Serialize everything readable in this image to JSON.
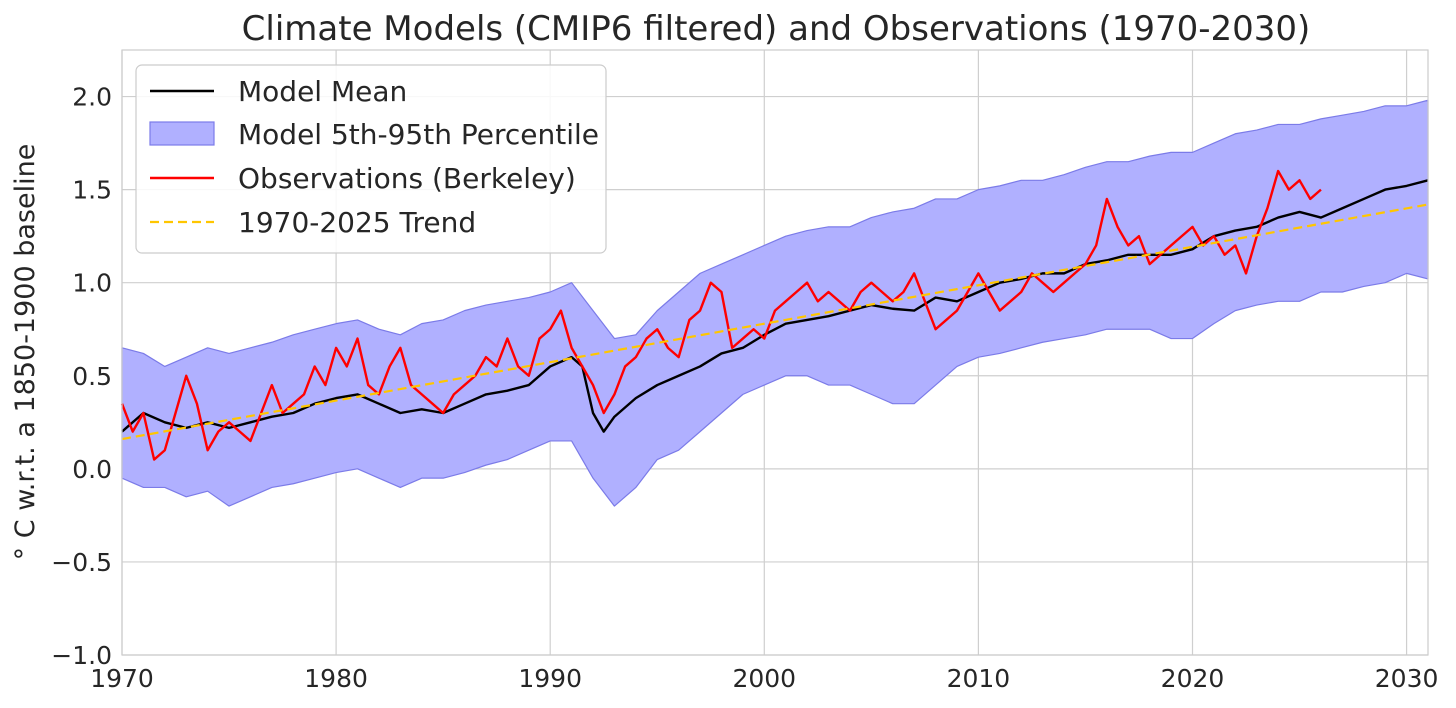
{
  "chart_data": {
    "type": "line",
    "title": "Climate Models (CMIP6 filtered) and Observations (1970-2030)",
    "xlabel": "",
    "ylabel": "° C w.r.t. a 1850-1900 baseline",
    "xlim": [
      1970,
      2031
    ],
    "ylim": [
      -1.0,
      2.25
    ],
    "xticks": [
      1970,
      1980,
      1990,
      2000,
      2010,
      2020,
      2030
    ],
    "xtick_labels": [
      "1970",
      "1980",
      "1990",
      "2000",
      "2010",
      "2020",
      "2030"
    ],
    "yticks": [
      -1.0,
      -0.5,
      0.0,
      0.5,
      1.0,
      1.5,
      2.0
    ],
    "ytick_labels": [
      "−1.0",
      "−0.5",
      "0.0",
      "0.5",
      "1.0",
      "1.5",
      "2.0"
    ],
    "grid": true,
    "legend": {
      "position": "top-left",
      "entries": [
        "Model Mean",
        "Model 5th-95th Percentile",
        "Observations (Berkeley)",
        "1970-2025 Trend"
      ]
    },
    "colors": {
      "model_mean": "#000000",
      "band_fill": "#b0b0ff",
      "band_edge": "#7b7be8",
      "observations": "#ff0000",
      "trend": "#ffc600"
    },
    "series": [
      {
        "name": "Model Mean",
        "style": "line",
        "x": [
          1970,
          1971,
          1972,
          1973,
          1974,
          1975,
          1976,
          1977,
          1978,
          1979,
          1980,
          1981,
          1982,
          1983,
          1984,
          1985,
          1986,
          1987,
          1988,
          1989,
          1990,
          1991,
          1991.5,
          1992,
          1992.5,
          1993,
          1994,
          1995,
          1996,
          1997,
          1998,
          1999,
          2000,
          2001,
          2002,
          2003,
          2004,
          2005,
          2006,
          2007,
          2008,
          2009,
          2010,
          2011,
          2012,
          2013,
          2014,
          2015,
          2016,
          2017,
          2018,
          2019,
          2020,
          2021,
          2022,
          2023,
          2024,
          2025,
          2026,
          2027,
          2028,
          2029,
          2030,
          2031
        ],
        "y": [
          0.2,
          0.3,
          0.25,
          0.22,
          0.25,
          0.22,
          0.25,
          0.28,
          0.3,
          0.35,
          0.38,
          0.4,
          0.35,
          0.3,
          0.32,
          0.3,
          0.35,
          0.4,
          0.42,
          0.45,
          0.55,
          0.6,
          0.55,
          0.3,
          0.2,
          0.28,
          0.38,
          0.45,
          0.5,
          0.55,
          0.62,
          0.65,
          0.72,
          0.78,
          0.8,
          0.82,
          0.85,
          0.88,
          0.86,
          0.85,
          0.92,
          0.9,
          0.95,
          1.0,
          1.02,
          1.05,
          1.05,
          1.1,
          1.12,
          1.15,
          1.15,
          1.15,
          1.18,
          1.25,
          1.28,
          1.3,
          1.35,
          1.38,
          1.35,
          1.4,
          1.45,
          1.5,
          1.52,
          1.55
        ]
      },
      {
        "name": "Model 5th-95th Percentile",
        "style": "band",
        "x": [
          1970,
          1971,
          1972,
          1973,
          1974,
          1975,
          1976,
          1977,
          1978,
          1979,
          1980,
          1981,
          1982,
          1983,
          1984,
          1985,
          1986,
          1987,
          1988,
          1989,
          1990,
          1991,
          1992,
          1993,
          1994,
          1995,
          1996,
          1997,
          1998,
          1999,
          2000,
          2001,
          2002,
          2003,
          2004,
          2005,
          2006,
          2007,
          2008,
          2009,
          2010,
          2011,
          2012,
          2013,
          2014,
          2015,
          2016,
          2017,
          2018,
          2019,
          2020,
          2021,
          2022,
          2023,
          2024,
          2025,
          2026,
          2027,
          2028,
          2029,
          2030,
          2031
        ],
        "lower": [
          -0.05,
          -0.1,
          -0.1,
          -0.15,
          -0.12,
          -0.2,
          -0.15,
          -0.1,
          -0.08,
          -0.05,
          -0.02,
          0.0,
          -0.05,
          -0.1,
          -0.05,
          -0.05,
          -0.02,
          0.02,
          0.05,
          0.1,
          0.15,
          0.15,
          -0.05,
          -0.2,
          -0.1,
          0.05,
          0.1,
          0.2,
          0.3,
          0.4,
          0.45,
          0.5,
          0.5,
          0.45,
          0.45,
          0.4,
          0.35,
          0.35,
          0.45,
          0.55,
          0.6,
          0.62,
          0.65,
          0.68,
          0.7,
          0.72,
          0.75,
          0.75,
          0.75,
          0.7,
          0.7,
          0.78,
          0.85,
          0.88,
          0.9,
          0.9,
          0.95,
          0.95,
          0.98,
          1.0,
          1.05,
          1.02
        ],
        "upper": [
          0.65,
          0.62,
          0.55,
          0.6,
          0.65,
          0.62,
          0.65,
          0.68,
          0.72,
          0.75,
          0.78,
          0.8,
          0.75,
          0.72,
          0.78,
          0.8,
          0.85,
          0.88,
          0.9,
          0.92,
          0.95,
          1.0,
          0.85,
          0.7,
          0.72,
          0.85,
          0.95,
          1.05,
          1.1,
          1.15,
          1.2,
          1.25,
          1.28,
          1.3,
          1.3,
          1.35,
          1.38,
          1.4,
          1.45,
          1.45,
          1.5,
          1.52,
          1.55,
          1.55,
          1.58,
          1.62,
          1.65,
          1.65,
          1.68,
          1.7,
          1.7,
          1.75,
          1.8,
          1.82,
          1.85,
          1.85,
          1.88,
          1.9,
          1.92,
          1.95,
          1.95,
          1.98
        ]
      },
      {
        "name": "Observations (Berkeley)",
        "style": "line",
        "x": [
          1970,
          1970.5,
          1971,
          1971.5,
          1972,
          1972.5,
          1973,
          1973.5,
          1974,
          1974.5,
          1975,
          1975.5,
          1976,
          1976.5,
          1977,
          1977.5,
          1978,
          1978.5,
          1979,
          1979.5,
          1980,
          1980.5,
          1981,
          1981.5,
          1982,
          1982.5,
          1983,
          1983.5,
          1984,
          1984.5,
          1985,
          1985.5,
          1986,
          1986.5,
          1987,
          1987.5,
          1988,
          1988.5,
          1989,
          1989.5,
          1990,
          1990.5,
          1991,
          1991.5,
          1992,
          1992.5,
          1993,
          1993.5,
          1994,
          1994.5,
          1995,
          1995.5,
          1996,
          1996.5,
          1997,
          1997.5,
          1998,
          1998.5,
          1999,
          1999.5,
          2000,
          2000.5,
          2001,
          2001.5,
          2002,
          2002.5,
          2003,
          2003.5,
          2004,
          2004.5,
          2005,
          2005.5,
          2006,
          2006.5,
          2007,
          2007.5,
          2008,
          2008.5,
          2009,
          2009.5,
          2010,
          2010.5,
          2011,
          2011.5,
          2012,
          2012.5,
          2013,
          2013.5,
          2014,
          2014.5,
          2015,
          2015.5,
          2016,
          2016.5,
          2017,
          2017.5,
          2018,
          2018.5,
          2019,
          2019.5,
          2020,
          2020.5,
          2021,
          2021.5,
          2022,
          2022.5,
          2023,
          2023.5,
          2024,
          2024.5,
          2025,
          2025.5,
          2026
        ],
        "y": [
          0.35,
          0.2,
          0.3,
          0.05,
          0.1,
          0.3,
          0.5,
          0.35,
          0.1,
          0.2,
          0.25,
          0.2,
          0.15,
          0.3,
          0.45,
          0.3,
          0.35,
          0.4,
          0.55,
          0.45,
          0.65,
          0.55,
          0.7,
          0.45,
          0.4,
          0.55,
          0.65,
          0.45,
          0.4,
          0.35,
          0.3,
          0.4,
          0.45,
          0.5,
          0.6,
          0.55,
          0.7,
          0.55,
          0.5,
          0.7,
          0.75,
          0.85,
          0.65,
          0.55,
          0.45,
          0.3,
          0.4,
          0.55,
          0.6,
          0.7,
          0.75,
          0.65,
          0.6,
          0.8,
          0.85,
          1.0,
          0.95,
          0.65,
          0.7,
          0.75,
          0.7,
          0.85,
          0.9,
          0.95,
          1.0,
          0.9,
          0.95,
          0.9,
          0.85,
          0.95,
          1.0,
          0.95,
          0.9,
          0.95,
          1.05,
          0.9,
          0.75,
          0.8,
          0.85,
          0.95,
          1.05,
          0.95,
          0.85,
          0.9,
          0.95,
          1.05,
          1.0,
          0.95,
          1.0,
          1.05,
          1.1,
          1.2,
          1.45,
          1.3,
          1.2,
          1.25,
          1.1,
          1.15,
          1.2,
          1.25,
          1.3,
          1.2,
          1.25,
          1.15,
          1.2,
          1.05,
          1.25,
          1.4,
          1.6,
          1.5,
          1.55,
          1.45,
          1.5
        ]
      },
      {
        "name": "1970-2025 Trend",
        "style": "dashed",
        "x": [
          1970,
          2031
        ],
        "y": [
          0.16,
          1.42
        ]
      }
    ]
  }
}
